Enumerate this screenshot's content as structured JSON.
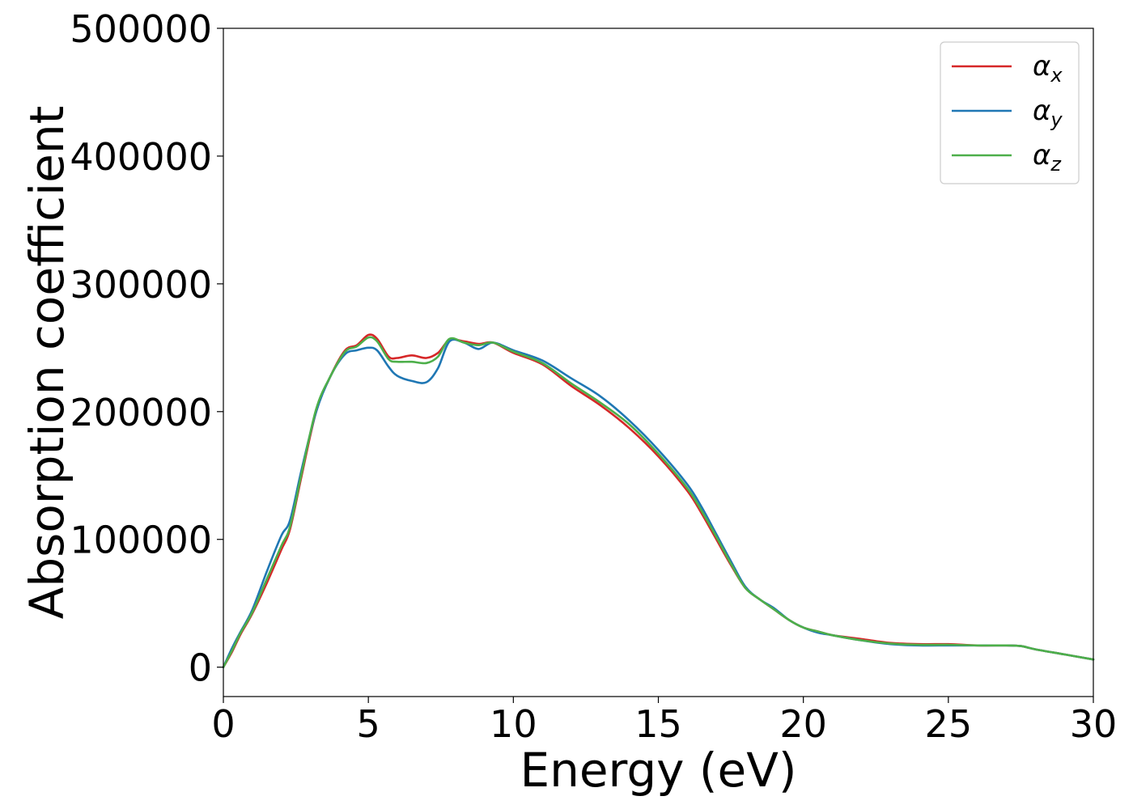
{
  "chart_data": {
    "type": "line",
    "title": "",
    "xlabel": "Energy (eV)",
    "ylabel": "Absorption coefficient",
    "xlim": [
      0,
      30
    ],
    "ylim": [
      -23000,
      500000
    ],
    "xticks": [
      0,
      5,
      10,
      15,
      20,
      25,
      30
    ],
    "yticks": [
      0,
      100000,
      200000,
      300000,
      400000,
      500000
    ],
    "xtick_labels": [
      "0",
      "5",
      "10",
      "15",
      "20",
      "25",
      "30"
    ],
    "ytick_labels": [
      "0",
      "100000",
      "200000",
      "300000",
      "400000",
      "500000"
    ],
    "grid": false,
    "legend_position": "top-right",
    "x": [
      0,
      0.3,
      0.6,
      1,
      1.5,
      2,
      2.3,
      2.7,
      3.2,
      3.7,
      4.2,
      4.6,
      5,
      5.3,
      5.7,
      6,
      6.5,
      7,
      7.4,
      7.8,
      8.3,
      8.8,
      9.3,
      10,
      11,
      12,
      13,
      14,
      15,
      16,
      16.5,
      17,
      17.5,
      18,
      18.5,
      19,
      19.5,
      20,
      20.5,
      21,
      22,
      23,
      24,
      25,
      26,
      27,
      27.5,
      28,
      29,
      30
    ],
    "series": [
      {
        "name": "α_x",
        "label_base": "α",
        "label_sub": "x",
        "color": "#d62728",
        "values": [
          0,
          12000,
          26000,
          42000,
          66000,
          92000,
          108000,
          150000,
          200000,
          228000,
          248000,
          252000,
          260000,
          257000,
          243000,
          242000,
          244000,
          242000,
          246000,
          256000,
          255000,
          253000,
          254000,
          246000,
          237000,
          220000,
          205000,
          187000,
          165000,
          138000,
          120000,
          100000,
          80000,
          62000,
          53000,
          45000,
          37000,
          31000,
          28000,
          25000,
          22000,
          19000,
          18000,
          18000,
          17000,
          17000,
          16500,
          14000,
          10000,
          6000
        ]
      },
      {
        "name": "α_y",
        "label_base": "α",
        "label_sub": "y",
        "color": "#1f77b4",
        "values": [
          0,
          15000,
          28000,
          45000,
          75000,
          103000,
          115000,
          155000,
          200000,
          228000,
          245000,
          248000,
          250000,
          248000,
          235000,
          228000,
          224000,
          223000,
          234000,
          255000,
          254000,
          249000,
          254000,
          248000,
          240000,
          226000,
          212000,
          193000,
          170000,
          143000,
          125000,
          104000,
          83000,
          63000,
          53000,
          46000,
          37000,
          31000,
          27000,
          25000,
          21000,
          18000,
          17000,
          17000,
          17000,
          17000,
          16500,
          14000,
          10000,
          6000
        ]
      },
      {
        "name": "α_z",
        "label_base": "α",
        "label_sub": "z",
        "color": "#4daf4a",
        "values": [
          0,
          13000,
          27000,
          43000,
          69000,
          95000,
          110000,
          152000,
          202000,
          228000,
          247000,
          251000,
          258000,
          255000,
          241000,
          239000,
          239000,
          238000,
          243000,
          257000,
          254000,
          252000,
          254000,
          247000,
          238000,
          222000,
          207000,
          190000,
          167000,
          140000,
          122000,
          102000,
          81000,
          62000,
          53000,
          45000,
          37000,
          31000,
          28000,
          25000,
          21000,
          18500,
          17500,
          17500,
          17000,
          17000,
          16500,
          14000,
          10000,
          6000
        ]
      }
    ]
  }
}
